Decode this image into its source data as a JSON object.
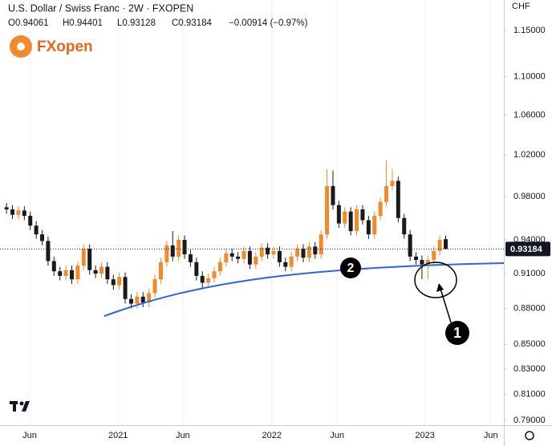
{
  "chart_data": {
    "type": "candlestick",
    "title": "U.S. Dollar / Swiss Franc · 2W · FXOPEN",
    "ohlc_labels": [
      "O0.94061",
      "H0.94401",
      "L0.93128",
      "C0.93184",
      "−0.00914 (−0.97%)"
    ],
    "logo": "FXopen",
    "currency": "CHF",
    "annotations": [
      "1",
      "2"
    ],
    "up_color": "#f08a2c",
    "down_color": "#1a1a1a",
    "log_scale": true,
    "ylim": [
      0.7864,
      1.1843
    ],
    "yticks": [
      {
        "value": 1.15,
        "label": "1.15000"
      },
      {
        "value": 1.1,
        "label": "1.10000"
      },
      {
        "value": 1.06,
        "label": "1.06000"
      },
      {
        "value": 1.02,
        "label": "1.02000"
      },
      {
        "value": 0.98,
        "label": "0.98000"
      },
      {
        "value": 0.94,
        "label": "0.94000"
      },
      {
        "value": 0.91,
        "label": "0.91000"
      },
      {
        "value": 0.88,
        "label": "0.88000"
      },
      {
        "value": 0.85,
        "label": "0.85000"
      },
      {
        "value": 0.83,
        "label": "0.83000"
      },
      {
        "value": 0.81,
        "label": "0.81000"
      },
      {
        "value": 0.79,
        "label": "0.79000"
      }
    ],
    "xlim": [
      -1.1,
      83.8
    ],
    "xticks": [
      {
        "value": 3.9,
        "label": "Jun"
      },
      {
        "value": 18.8,
        "label": "2021"
      },
      {
        "value": 29.7,
        "label": "Jun"
      },
      {
        "value": 44.7,
        "label": "2022"
      },
      {
        "value": 55.7,
        "label": "Jun"
      },
      {
        "value": 70.5,
        "label": "2023"
      },
      {
        "value": 81.6,
        "label": "Jun"
      }
    ],
    "open": [
      0.97,
      0.968,
      0.963,
      0.967,
      0.962,
      0.953,
      0.945,
      0.939,
      0.921,
      0.912,
      0.908,
      0.913,
      0.905,
      0.917,
      0.932,
      0.913,
      0.91,
      0.916,
      0.905,
      0.9,
      0.907,
      0.888,
      0.884,
      0.89,
      0.885,
      0.893,
      0.905,
      0.92,
      0.935,
      0.925,
      0.94,
      0.927,
      0.92,
      0.908,
      0.902,
      0.906,
      0.912,
      0.92,
      0.928,
      0.925,
      0.923,
      0.93,
      0.918,
      0.925,
      0.933,
      0.927,
      0.93,
      0.92,
      0.916,
      0.925,
      0.932,
      0.924,
      0.934,
      0.927,
      0.945,
      0.99,
      0.972,
      0.955,
      0.966,
      0.948,
      0.968,
      0.958,
      0.945,
      0.962,
      0.975,
      0.99,
      0.995,
      0.96,
      0.945,
      0.925,
      0.922,
      0.918,
      0.922,
      0.93,
      0.94061
    ],
    "high": [
      0.974,
      0.972,
      0.971,
      0.971,
      0.966,
      0.957,
      0.949,
      0.943,
      0.925,
      0.916,
      0.917,
      0.917,
      0.921,
      0.936,
      0.936,
      0.917,
      0.92,
      0.92,
      0.909,
      0.911,
      0.911,
      0.892,
      0.894,
      0.894,
      0.897,
      0.909,
      0.924,
      0.939,
      0.948,
      0.944,
      0.944,
      0.931,
      0.924,
      0.912,
      0.91,
      0.916,
      0.924,
      0.932,
      0.932,
      0.929,
      0.934,
      0.934,
      0.929,
      0.937,
      0.937,
      0.934,
      0.934,
      0.924,
      0.929,
      0.936,
      0.936,
      0.938,
      0.938,
      0.949,
      1.006,
      1.005,
      0.976,
      0.97,
      0.97,
      0.972,
      0.972,
      0.962,
      0.966,
      0.979,
      1.015,
      1.006,
      0.999,
      0.964,
      0.949,
      0.929,
      0.926,
      0.926,
      0.934,
      0.944,
      0.94401
    ],
    "low": [
      0.964,
      0.959,
      0.959,
      0.958,
      0.949,
      0.941,
      0.935,
      0.917,
      0.908,
      0.904,
      0.904,
      0.901,
      0.901,
      0.913,
      0.909,
      0.906,
      0.906,
      0.901,
      0.896,
      0.896,
      0.884,
      0.88,
      0.88,
      0.881,
      0.881,
      0.889,
      0.901,
      0.916,
      0.921,
      0.921,
      0.923,
      0.916,
      0.904,
      0.898,
      0.898,
      0.902,
      0.908,
      0.916,
      0.921,
      0.919,
      0.919,
      0.914,
      0.914,
      0.921,
      0.923,
      0.923,
      0.916,
      0.912,
      0.912,
      0.921,
      0.92,
      0.92,
      0.923,
      0.923,
      0.941,
      0.968,
      0.951,
      0.951,
      0.944,
      0.944,
      0.954,
      0.941,
      0.941,
      0.958,
      0.971,
      0.986,
      0.956,
      0.941,
      0.921,
      0.918,
      0.905,
      0.905,
      0.918,
      0.926,
      0.93128
    ],
    "close": [
      0.968,
      0.963,
      0.967,
      0.962,
      0.953,
      0.945,
      0.939,
      0.921,
      0.912,
      0.908,
      0.913,
      0.905,
      0.917,
      0.932,
      0.913,
      0.91,
      0.916,
      0.905,
      0.9,
      0.907,
      0.888,
      0.884,
      0.89,
      0.885,
      0.893,
      0.905,
      0.92,
      0.935,
      0.925,
      0.94,
      0.927,
      0.92,
      0.908,
      0.902,
      0.906,
      0.912,
      0.92,
      0.928,
      0.925,
      0.923,
      0.93,
      0.918,
      0.925,
      0.933,
      0.927,
      0.93,
      0.92,
      0.916,
      0.925,
      0.932,
      0.924,
      0.934,
      0.927,
      0.945,
      0.99,
      0.972,
      0.955,
      0.966,
      0.948,
      0.968,
      0.958,
      0.945,
      0.962,
      0.975,
      0.99,
      0.995,
      0.96,
      0.945,
      0.925,
      0.922,
      0.918,
      0.922,
      0.93,
      0.94,
      0.93184
    ]
  }
}
